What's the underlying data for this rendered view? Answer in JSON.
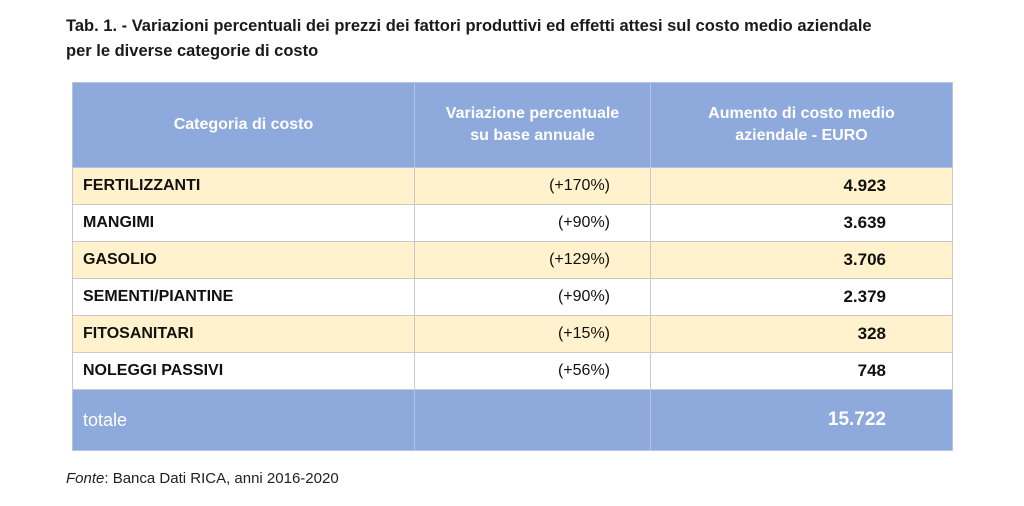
{
  "caption": {
    "line1": "Tab. 1. - Variazioni percentuali dei prezzi dei fattori produttivi ed effetti attesi sul costo medio aziendale",
    "line2": "per le diverse categorie di costo"
  },
  "table": {
    "headers": {
      "category": "Categoria di costo",
      "variation_l1": "Variazione percentuale",
      "variation_l2": "su base annuale",
      "cost_l1": "Aumento di costo medio",
      "cost_l2": "aziendale - EURO"
    },
    "rows": [
      {
        "category": "FERTILIZZANTI",
        "variation": "(+170%)",
        "cost": "4.923"
      },
      {
        "category": "MANGIMI",
        "variation": "(+90%)",
        "cost": "3.639"
      },
      {
        "category": "GASOLIO",
        "variation": "(+129%)",
        "cost": "3.706"
      },
      {
        "category": "SEMENTI/PIANTINE",
        "variation": "(+90%)",
        "cost": "2.379"
      },
      {
        "category": "FITOSANITARI",
        "variation": "(+15%)",
        "cost": "328"
      },
      {
        "category": "NOLEGGI PASSIVI",
        "variation": "(+56%)",
        "cost": "748"
      }
    ],
    "total": {
      "label": "totale",
      "variation": "",
      "cost": "15.722"
    }
  },
  "source": {
    "lead": "Fonte",
    "rest": ": Banca Dati RICA, anni 2016-2020"
  },
  "colors": {
    "header_bg": "#8eaadc",
    "band_bg": "#fff2cc"
  }
}
